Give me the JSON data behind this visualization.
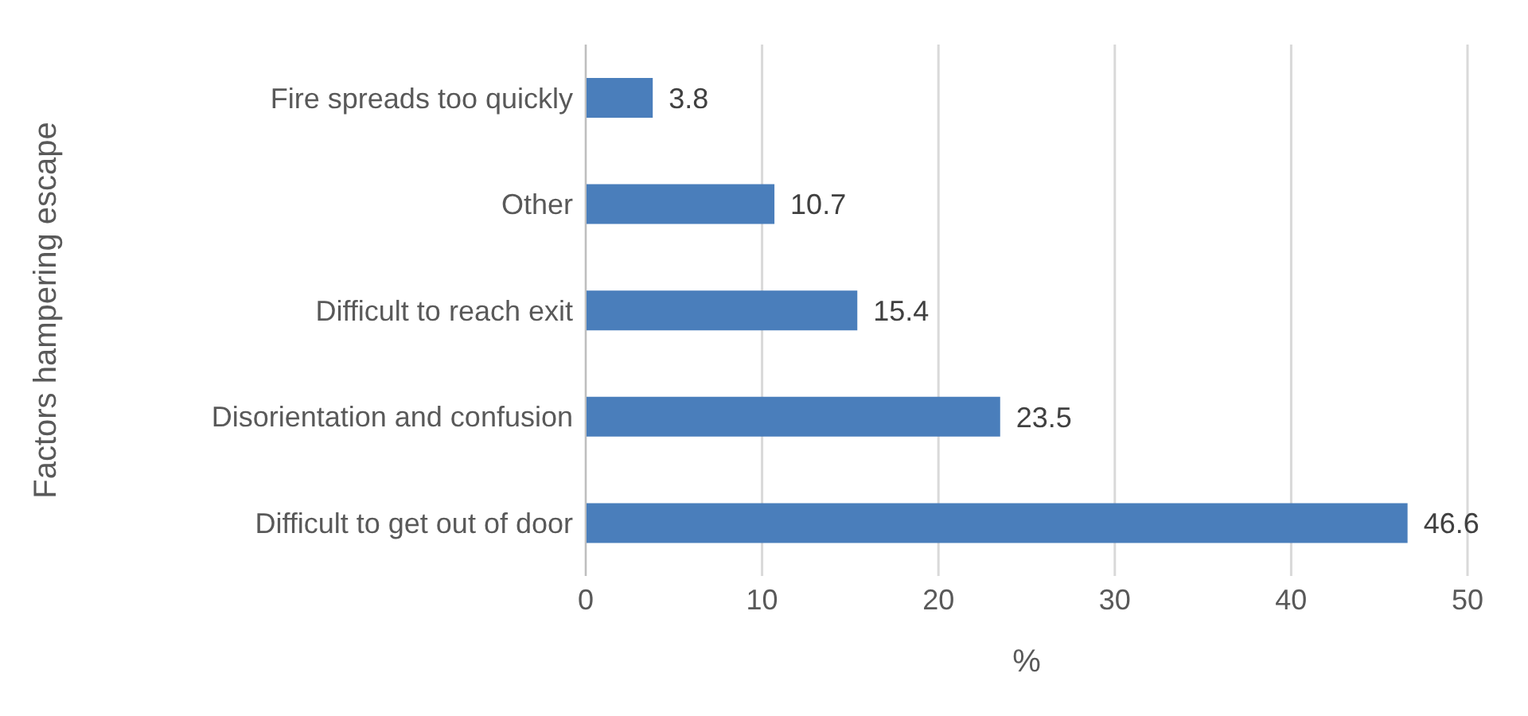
{
  "chart_data": {
    "type": "bar",
    "orientation": "horizontal",
    "ylabel": "Factors hampering escape",
    "xlabel": "%",
    "categories": [
      "Fire spreads too quickly",
      "Other",
      "Difficult to reach exit",
      "Disorientation and confusion",
      "Difficult to get out of door"
    ],
    "values": [
      3.8,
      10.7,
      15.4,
      23.5,
      46.6
    ],
    "color": "#4a7ebb",
    "xlim": [
      0,
      50
    ],
    "xticks": [
      0,
      10,
      20,
      30,
      40,
      50
    ],
    "grid": "x",
    "data_labels": true
  }
}
